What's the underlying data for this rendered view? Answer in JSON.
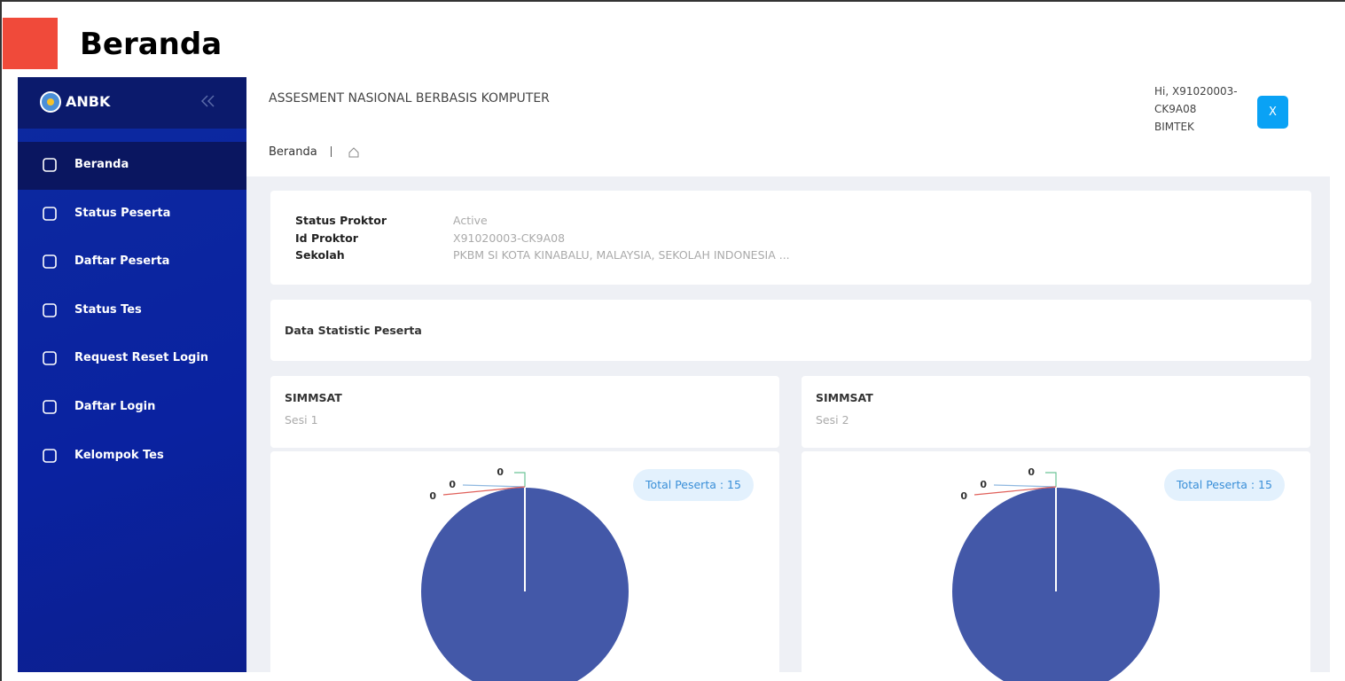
{
  "header": {
    "title": "Beranda"
  },
  "sidebar": {
    "brand": "ANBK",
    "menu": [
      "Beranda",
      "Status Peserta",
      "Daftar Peserta",
      "Status Tes",
      "Request Reset Login",
      "Daftar Login",
      "Kelompok Tes"
    ]
  },
  "topbar": {
    "title": "ASSESMENT NASIONAL BERBASIS KOMPUTER",
    "user": [
      "Hi, X91020003-",
      "CK9A08",
      "BIMTEK"
    ],
    "button": "X",
    "breadcrumb": "Beranda"
  },
  "info": {
    "rows": [
      [
        "Status Proktor",
        "Active"
      ],
      [
        "Id Proktor",
        "X91020003-CK9A08"
      ],
      [
        "Sekolah",
        "PKBM SI KOTA KINABALU, MALAYSIA, SEKOLAH INDONESIA ..."
      ]
    ]
  },
  "stats_title": "Data Statistic Peserta",
  "charts": [
    {
      "type": "pie",
      "title": "SIMMSAT",
      "subtitle": "Sesi 1",
      "badge": "Total Peserta : 15",
      "values": [
        15,
        0,
        0,
        0
      ],
      "colors": [
        "#4358a8",
        "#6cc497",
        "#8fb8e0",
        "#e0605a"
      ]
    },
    {
      "type": "pie",
      "title": "SIMMSAT",
      "subtitle": "Sesi 2",
      "badge": "Total Peserta : 15",
      "values": [
        15,
        0,
        0,
        0
      ],
      "colors": [
        "#4358a8",
        "#6cc497",
        "#8fb8e0",
        "#e0605a"
      ]
    }
  ]
}
